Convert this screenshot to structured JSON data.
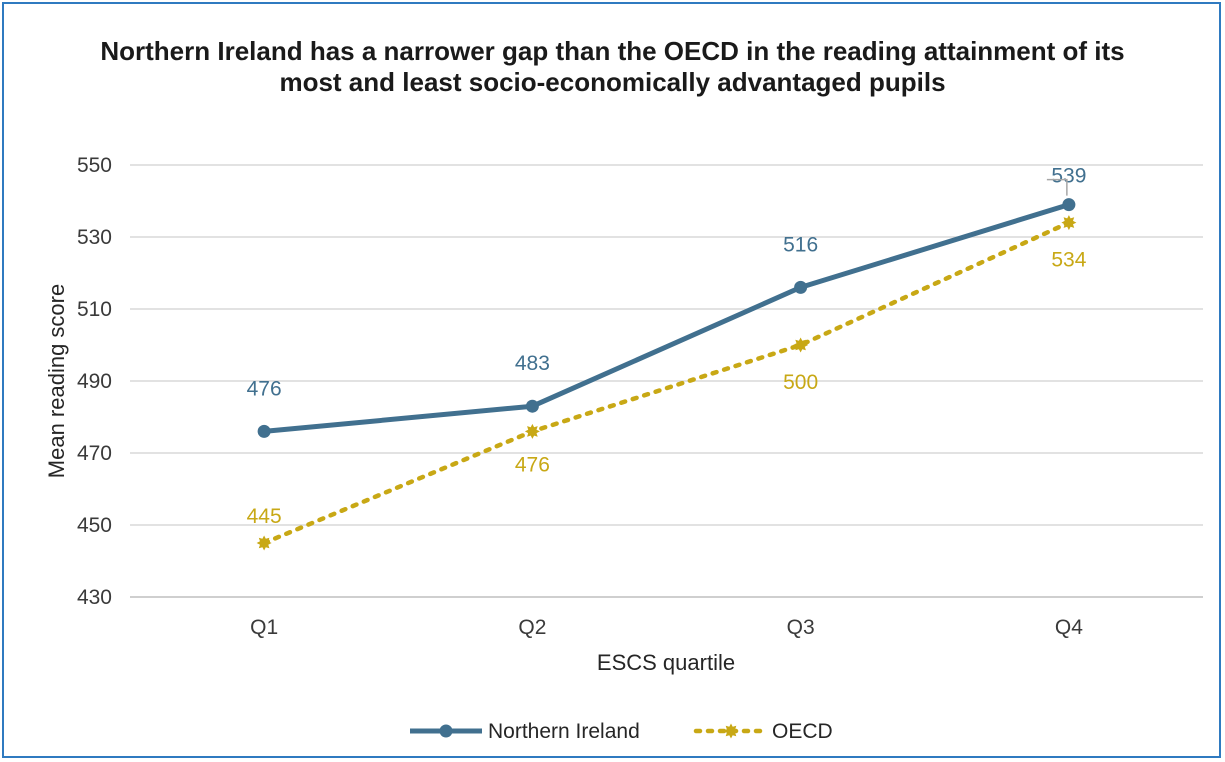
{
  "chart_data": {
    "type": "line",
    "title": "Northern Ireland has a narrower gap than the OECD in the reading attainment of its most and least socio-economically advantaged pupils",
    "xlabel": "ESCS quartile",
    "ylabel": "Mean reading score",
    "categories": [
      "Q1",
      "Q2",
      "Q3",
      "Q4"
    ],
    "ylim": [
      430,
      550
    ],
    "yticks": [
      430,
      450,
      470,
      490,
      510,
      530,
      550
    ],
    "grid": true,
    "legend": "bottom",
    "series": [
      {
        "name": "Northern Ireland",
        "values": [
          476,
          483,
          516,
          539
        ],
        "color": "#41708f",
        "style": "solid",
        "marker": "circle",
        "labels": [
          "476",
          "483",
          "516",
          "539"
        ]
      },
      {
        "name": "OECD",
        "values": [
          445,
          476,
          500,
          534
        ],
        "color": "#c8a815",
        "style": "dotted",
        "marker": "star",
        "labels": [
          "445",
          "476",
          "500",
          "534"
        ]
      }
    ]
  }
}
